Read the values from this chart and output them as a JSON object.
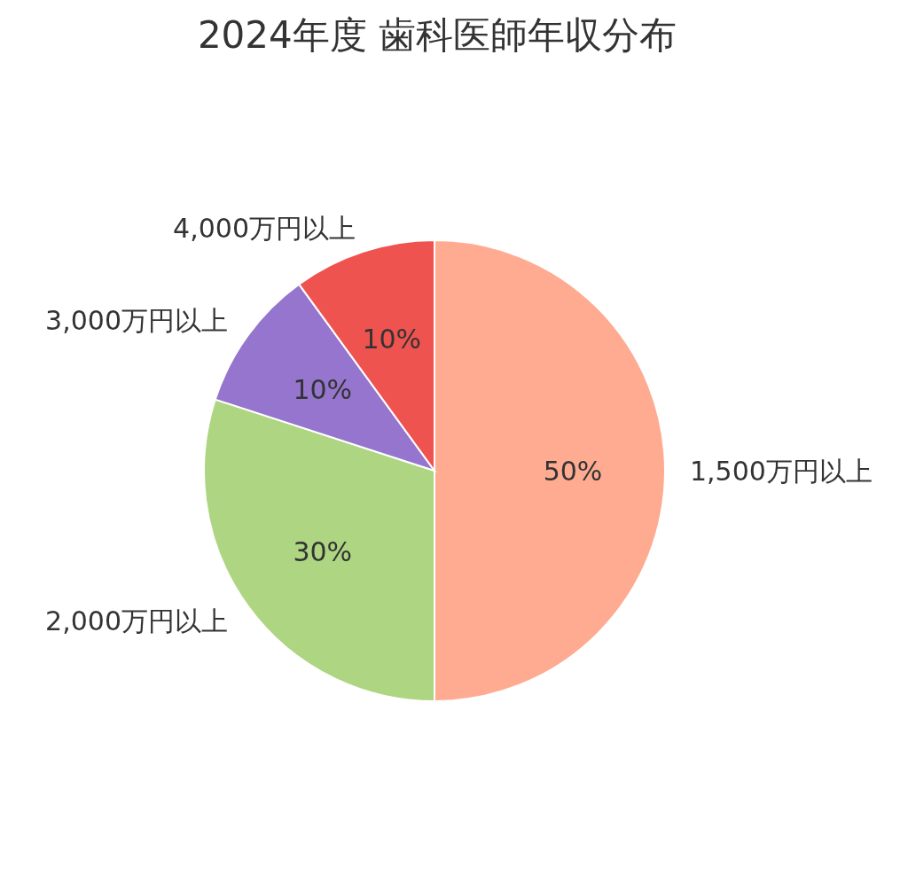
{
  "chart_data": {
    "type": "pie",
    "title": "2024年度 歯科医師年収分布",
    "categories": [
      "1,500万円以上",
      "2,000万円以上",
      "3,000万円以上",
      "4,000万円以上"
    ],
    "values": [
      50,
      30,
      10,
      10
    ],
    "value_labels": [
      "50%",
      "30%",
      "10%",
      "10%"
    ],
    "colors": [
      "#ffab91",
      "#aed581",
      "#9575cd",
      "#ef5350"
    ],
    "legend": false
  }
}
